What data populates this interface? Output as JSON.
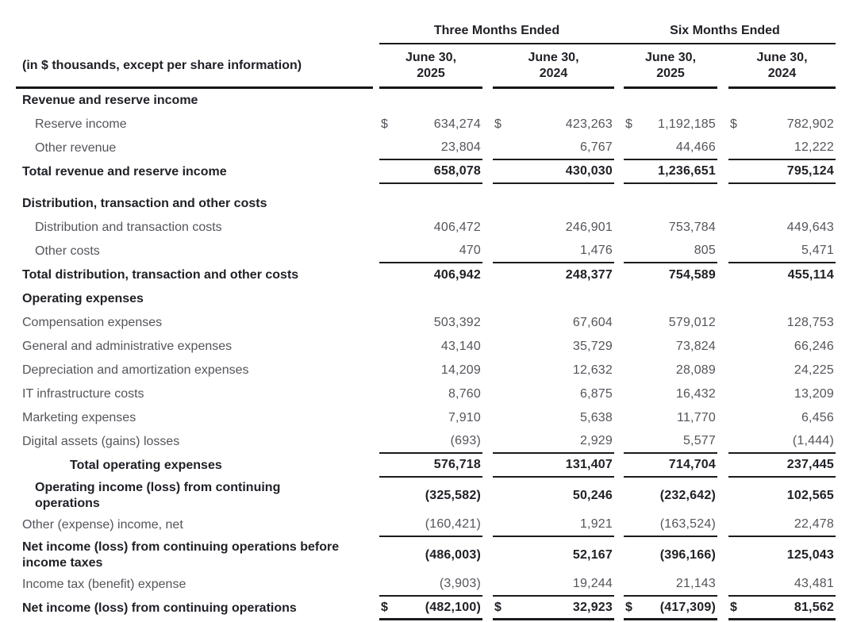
{
  "units_note": "(in $ thousands, except per share information)",
  "header": {
    "groups": [
      {
        "label": "Three Months Ended"
      },
      {
        "label": "Six Months Ended"
      }
    ],
    "columns": [
      {
        "line1": "June 30,",
        "line2": "2025"
      },
      {
        "line1": "June 30,",
        "line2": "2024"
      },
      {
        "line1": "June 30,",
        "line2": "2025"
      },
      {
        "line1": "June 30,",
        "line2": "2024"
      }
    ]
  },
  "rows": [
    {
      "label": "Revenue and reserve income",
      "type": "section",
      "indent": 0,
      "values": null
    },
    {
      "label": "Reserve income",
      "type": "item",
      "indent": 1,
      "dollar": true,
      "values": [
        "634,274",
        "423,263",
        "1,192,185",
        "782,902"
      ]
    },
    {
      "label": "Other revenue",
      "type": "item",
      "indent": 1,
      "rule_below": true,
      "values": [
        "23,804",
        "6,767",
        "44,466",
        "12,222"
      ]
    },
    {
      "label": "Total revenue and reserve income",
      "type": "total",
      "indent": 0,
      "rule_below": true,
      "values": [
        "658,078",
        "430,030",
        "1,236,651",
        "795,124"
      ]
    },
    {
      "label": "Distribution, transaction and other costs",
      "type": "section",
      "indent": 0,
      "gap_before": true,
      "values": null
    },
    {
      "label": "Distribution and transaction costs",
      "type": "item",
      "indent": 1,
      "values": [
        "406,472",
        "246,901",
        "753,784",
        "449,643"
      ]
    },
    {
      "label": "Other costs",
      "type": "item",
      "indent": 1,
      "rule_below": true,
      "values": [
        "470",
        "1,476",
        "805",
        "5,471"
      ]
    },
    {
      "label": "Total distribution, transaction and other costs",
      "type": "total",
      "indent": 0,
      "values": [
        "406,942",
        "248,377",
        "754,589",
        "455,114"
      ]
    },
    {
      "label": "Operating expenses",
      "type": "section",
      "indent": 0,
      "values": null
    },
    {
      "label": "Compensation expenses",
      "type": "item",
      "indent": 0,
      "values": [
        "503,392",
        "67,604",
        "579,012",
        "128,753"
      ]
    },
    {
      "label": "General and administrative expenses",
      "type": "item",
      "indent": 0,
      "values": [
        "43,140",
        "35,729",
        "73,824",
        "66,246"
      ]
    },
    {
      "label": "Depreciation and amortization expenses",
      "type": "item",
      "indent": 0,
      "values": [
        "14,209",
        "12,632",
        "28,089",
        "24,225"
      ]
    },
    {
      "label": "IT infrastructure costs",
      "type": "item",
      "indent": 0,
      "values": [
        "8,760",
        "6,875",
        "16,432",
        "13,209"
      ]
    },
    {
      "label": "Marketing expenses",
      "type": "item",
      "indent": 0,
      "values": [
        "7,910",
        "5,638",
        "11,770",
        "6,456"
      ]
    },
    {
      "label": "Digital assets (gains) losses",
      "type": "item",
      "indent": 0,
      "rule_below": true,
      "values": [
        "(693)",
        "2,929",
        "5,577",
        "(1,444)"
      ]
    },
    {
      "label": "Total operating expenses",
      "type": "total",
      "indent": 2,
      "rule_below": true,
      "values": [
        "576,718",
        "131,407",
        "714,704",
        "237,445"
      ]
    },
    {
      "label": "Operating income (loss) from continuing operations",
      "type": "total",
      "indent": 1,
      "narrow": true,
      "values": [
        "(325,582)",
        "50,246",
        "(232,642)",
        "102,565"
      ]
    },
    {
      "label": "Other (expense) income, net",
      "type": "item",
      "indent": 0,
      "rule_below": true,
      "values": [
        "(160,421)",
        "1,921",
        "(163,524)",
        "22,478"
      ]
    },
    {
      "label": "Net income (loss) from continuing operations before income taxes",
      "type": "total",
      "indent": 0,
      "narrow": true,
      "values": [
        "(486,003)",
        "52,167",
        "(396,166)",
        "125,043"
      ]
    },
    {
      "label": "Income tax (benefit) expense",
      "type": "item",
      "indent": 0,
      "rule_below": true,
      "values": [
        "(3,903)",
        "19,244",
        "21,143",
        "43,481"
      ]
    },
    {
      "label": "Net income (loss) from continuing operations",
      "type": "total",
      "indent": 0,
      "dollar": true,
      "rule_bottom": true,
      "values": [
        "(482,100)",
        "32,923",
        "(417,309)",
        "81,562"
      ]
    }
  ]
}
